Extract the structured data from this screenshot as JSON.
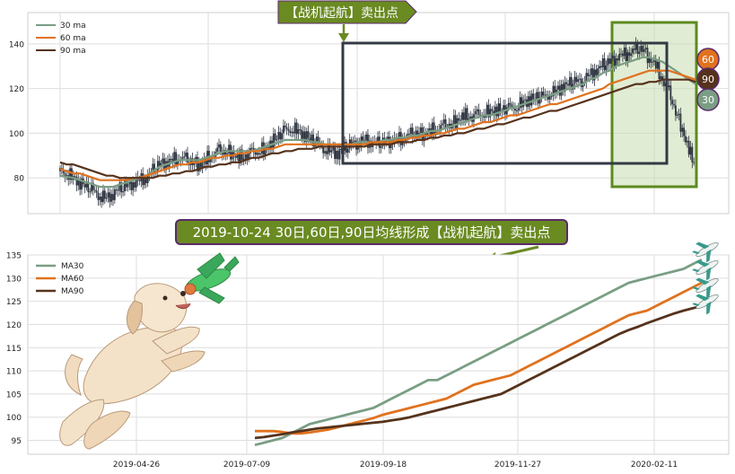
{
  "colors": {
    "ma30": "#7a9e84",
    "ma60": "#e0721e",
    "ma90": "#56321c",
    "candle": "#2d3440",
    "grid": "#dedede",
    "axis_text": "#222222",
    "banner_fill": "#6a8a22",
    "banner_border": "#5a2a6a",
    "box_dark": "#333a45",
    "box_green_border": "#5c8a1e",
    "box_green_fill": "#c9dcb0"
  },
  "top_banner": {
    "text": "【战机起航】卖出点"
  },
  "mid_banner": {
    "text": "2019-10-24 30日,60日,90日均线形成【战机起航】卖出点"
  },
  "badges": {
    "b60": "60",
    "b90": "90",
    "b30": "30"
  },
  "icons": {
    "dog": "dog-illustration",
    "plane_green": "toy-airplane",
    "planes_small": "jet-plane-icon",
    "arrow_down": "down-arrow",
    "arrow_left": "pointer-arrow"
  },
  "chart_data": [
    {
      "type": "line",
      "chart_role": "candlestick price with moving averages",
      "ylim": [
        64,
        154
      ],
      "yticks": [
        80,
        100,
        120,
        140
      ],
      "grid": true,
      "legend_placement": "top-left",
      "legend": [
        "30 ma",
        "60 ma",
        "90 ma"
      ],
      "price_close": [
        83,
        82,
        80,
        78,
        76,
        74,
        72,
        71,
        73,
        75,
        76,
        78,
        79,
        80,
        83,
        86,
        87,
        88,
        89,
        88,
        87,
        86,
        88,
        90,
        92,
        92,
        91,
        89,
        90,
        91,
        92,
        93,
        96,
        99,
        101,
        102,
        101,
        99,
        97,
        95,
        93,
        92,
        91,
        93,
        95,
        96,
        97,
        96,
        95,
        96,
        97,
        97,
        98,
        99,
        100,
        100,
        101,
        102,
        103,
        104,
        106,
        108,
        107,
        108,
        109,
        110,
        110,
        111,
        111,
        112,
        114,
        115,
        116,
        116,
        118,
        119,
        121,
        122,
        123,
        124,
        126,
        128,
        130,
        132,
        134,
        135,
        136,
        137,
        138,
        134,
        130,
        124,
        118,
        110,
        102,
        92,
        86
      ],
      "series": [
        {
          "name": "30 ma",
          "values": [
            81,
            80.5,
            80,
            79,
            78,
            77,
            76,
            76,
            76,
            77,
            78,
            79,
            80,
            81,
            83,
            85,
            86,
            87,
            88,
            88,
            88,
            88,
            89,
            90,
            91,
            92,
            92,
            92,
            92,
            92,
            93,
            94,
            95,
            96,
            97,
            97,
            97,
            97,
            96,
            96,
            95,
            95,
            95,
            95,
            95,
            96,
            96,
            96,
            96,
            97,
            97,
            98,
            98,
            99,
            99,
            100,
            101,
            101,
            102,
            103,
            104,
            105,
            106,
            107,
            108,
            108,
            109,
            110,
            111,
            112,
            113,
            114,
            115,
            116,
            117,
            118,
            119,
            120,
            121,
            122,
            124,
            125,
            127,
            128,
            130,
            131,
            132,
            133,
            134,
            134,
            133,
            132,
            130,
            128,
            126,
            124,
            122
          ]
        },
        {
          "name": "60 ma",
          "values": [
            84,
            83,
            82,
            82,
            81,
            80,
            79,
            79,
            79,
            79,
            79,
            80,
            80,
            81,
            82,
            83,
            84,
            85,
            86,
            86,
            87,
            87,
            88,
            89,
            89,
            90,
            90,
            91,
            91,
            92,
            92,
            93,
            93,
            94,
            95,
            95,
            95,
            95,
            95,
            95,
            95,
            95,
            95,
            95,
            95,
            95,
            95,
            96,
            96,
            96,
            96,
            97,
            97,
            98,
            98,
            99,
            99,
            100,
            100,
            101,
            102,
            102,
            103,
            104,
            105,
            105,
            106,
            107,
            108,
            108,
            109,
            110,
            111,
            112,
            113,
            113,
            114,
            115,
            116,
            117,
            118,
            119,
            120,
            122,
            123,
            124,
            125,
            126,
            127,
            128,
            128,
            128,
            128,
            127,
            126,
            125,
            124
          ]
        },
        {
          "name": "90 ma",
          "values": [
            87,
            86,
            86,
            85,
            84,
            83,
            82,
            81,
            81,
            80,
            80,
            80,
            80,
            80,
            80,
            81,
            81,
            82,
            82,
            83,
            83,
            84,
            85,
            85,
            86,
            86,
            87,
            87,
            88,
            89,
            89,
            90,
            91,
            91,
            92,
            92,
            93,
            93,
            93,
            94,
            94,
            94,
            94,
            94,
            94,
            94,
            94,
            95,
            95,
            95,
            95,
            96,
            96,
            96,
            97,
            97,
            98,
            98,
            99,
            99,
            100,
            100,
            101,
            102,
            102,
            103,
            104,
            104,
            105,
            106,
            107,
            107,
            108,
            109,
            110,
            110,
            111,
            112,
            113,
            114,
            115,
            116,
            117,
            118,
            119,
            120,
            121,
            122,
            122,
            123,
            123,
            124,
            124,
            124,
            124,
            124,
            123
          ]
        }
      ]
    },
    {
      "type": "line",
      "ylim": [
        92,
        135
      ],
      "yticks": [
        95,
        100,
        105,
        110,
        115,
        120,
        125,
        130,
        135
      ],
      "xticks": [
        "2019-04-26",
        "2019-07-09",
        "2019-09-18",
        "2019-11-27",
        "2020-02-11"
      ],
      "grid": true,
      "legend_placement": "top-left",
      "legend": [
        "MA30",
        "MA60",
        "MA90"
      ],
      "series": [
        {
          "name": "MA30",
          "start": "2019-07-09",
          "end": "2020-02-26",
          "values": [
            94,
            94.5,
            95,
            95.5,
            96.5,
            97.5,
            98.5,
            99,
            99.5,
            100,
            100.5,
            101,
            101.5,
            102,
            103,
            104,
            105,
            106,
            107,
            108,
            108,
            109,
            110,
            111,
            112,
            113,
            114,
            115,
            116,
            117,
            118,
            119,
            120,
            121,
            122,
            123,
            124,
            125,
            126,
            127,
            128,
            129,
            129.5,
            130,
            130.5,
            131,
            131.5,
            132,
            133,
            134
          ]
        },
        {
          "name": "MA60",
          "start": "2019-07-09",
          "end": "2020-02-26",
          "values": [
            97,
            97,
            97,
            96.8,
            96.5,
            96.5,
            96.7,
            97,
            97.3,
            97.8,
            98.3,
            98.8,
            99.3,
            99.8,
            100.5,
            101,
            101.5,
            102,
            102.5,
            103,
            103.5,
            104,
            105,
            106,
            107,
            107.5,
            108,
            108.5,
            109,
            110,
            111,
            112,
            113,
            114,
            115,
            116,
            117,
            118,
            119,
            120,
            121,
            122,
            122.5,
            123,
            124,
            125,
            126,
            127,
            128,
            129
          ]
        },
        {
          "name": "MA90",
          "start": "2019-07-09",
          "end": "2020-02-26",
          "values": [
            95.5,
            95.7,
            96,
            96.3,
            96.7,
            97,
            97.3,
            97.6,
            97.8,
            98,
            98.2,
            98.4,
            98.6,
            98.8,
            99,
            99.3,
            99.6,
            100,
            100.5,
            101,
            101.5,
            102,
            102.5,
            103,
            103.5,
            104,
            104.5,
            105,
            106,
            107,
            108,
            109,
            110,
            111,
            112,
            113,
            114,
            115,
            116,
            117,
            118,
            118.8,
            119.5,
            120.3,
            121,
            121.7,
            122.4,
            123,
            123.5,
            124
          ]
        }
      ]
    }
  ]
}
